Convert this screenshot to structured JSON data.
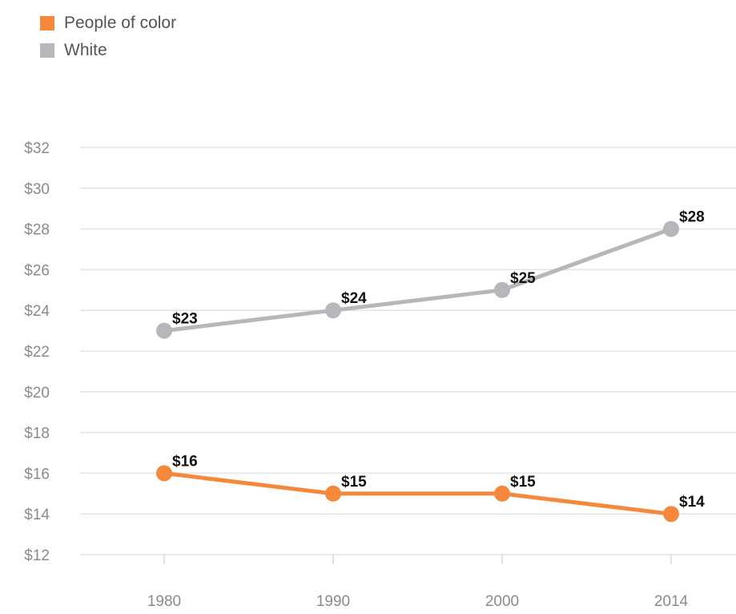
{
  "chart_data": {
    "type": "line",
    "title": "",
    "xlabel": "",
    "ylabel": "",
    "categories": [
      "1980",
      "1990",
      "2000",
      "2014"
    ],
    "ylim": [
      12,
      32
    ],
    "yticks": [
      12,
      14,
      16,
      18,
      20,
      22,
      24,
      26,
      28,
      30,
      32
    ],
    "ytick_labels": [
      "$12",
      "$14",
      "$16",
      "$18",
      "$20",
      "$22",
      "$24",
      "$26",
      "$28",
      "$30",
      "$32"
    ],
    "grid": "horizontal",
    "legend_position": "top-left",
    "series": [
      {
        "name": "People of color",
        "color": "#f5883a",
        "values": [
          16,
          15,
          15,
          14
        ],
        "labels": [
          "$16",
          "$15",
          "$15",
          "$14"
        ]
      },
      {
        "name": "White",
        "color": "#b5b7bb",
        "values": [
          23,
          24,
          25,
          28
        ],
        "labels": [
          "$23",
          "$24",
          "$25",
          "$28"
        ]
      }
    ]
  }
}
